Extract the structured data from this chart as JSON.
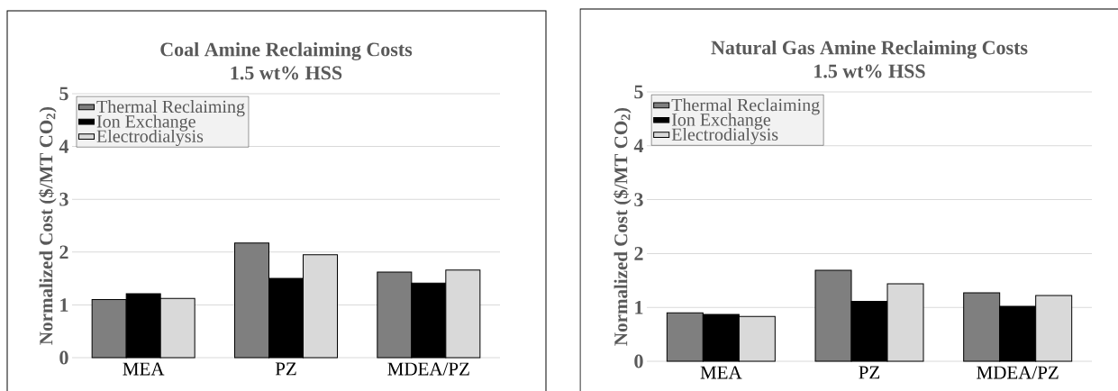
{
  "chart_data": [
    {
      "type": "bar",
      "title": "Coal  Amine Reclaiming Costs",
      "subtitle": "1.5 wt% HSS",
      "ylabel": "Normalized Cost ($/MT CO$_{2}$)",
      "categories": [
        "MEA",
        "PZ",
        "MDEA/PZ"
      ],
      "series": [
        {
          "name": "Thermal Reclaiming",
          "color": "#7f7f7f",
          "values": [
            1.1,
            2.17,
            1.62
          ]
        },
        {
          "name": "Ion Exchange",
          "color": "#000000",
          "values": [
            1.21,
            1.5,
            1.41
          ]
        },
        {
          "name": "Electrodialysis",
          "color": "#d9d9d9",
          "values": [
            1.12,
            1.95,
            1.66
          ]
        }
      ],
      "ylim": [
        0,
        5
      ],
      "yticks": [
        0,
        1,
        2,
        3,
        4,
        5
      ],
      "grid": "y",
      "legend": "top left"
    },
    {
      "type": "bar",
      "title": "Natural Gas Amine Reclaiming Costs",
      "subtitle": "1.5 wt% HSS",
      "ylabel": "Normalized Cost ($/MT CO$_{2}$)",
      "categories": [
        "MEA",
        "PZ",
        "MDEA/PZ"
      ],
      "series": [
        {
          "name": "Thermal Reclaiming",
          "color": "#7f7f7f",
          "values": [
            0.9,
            1.69,
            1.27
          ]
        },
        {
          "name": "Ion Exchange",
          "color": "#000000",
          "values": [
            0.87,
            1.11,
            1.02
          ]
        },
        {
          "name": "Electrodialysis",
          "color": "#d9d9d9",
          "values": [
            0.83,
            1.44,
            1.22
          ]
        }
      ],
      "ylim": [
        0,
        5
      ],
      "yticks": [
        0,
        1,
        2,
        3,
        4,
        5
      ],
      "grid": "y",
      "legend": "top left"
    }
  ]
}
